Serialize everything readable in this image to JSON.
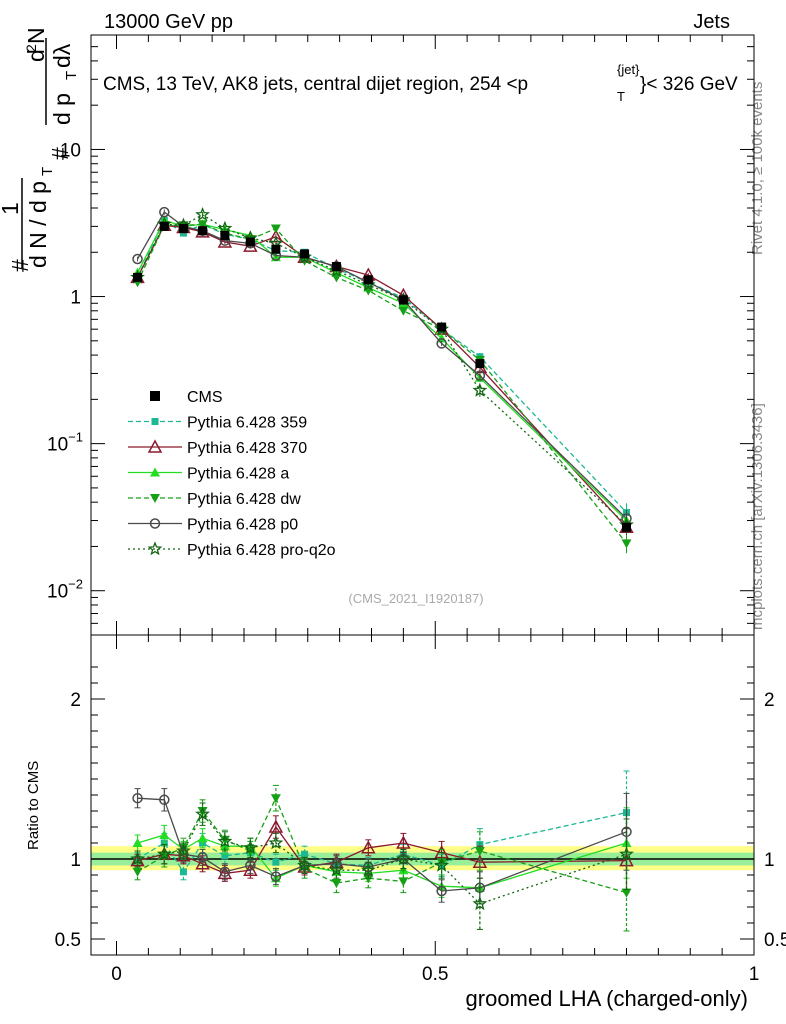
{
  "header": {
    "energy_label": "13000 GeV pp",
    "process_label": "Jets",
    "title": "CMS, 13 TeV, AK8 jets, central dijet region, 254 <p",
    "title_sup": "{jet}",
    "title_sub": "T",
    "title_tail": "}< 326 GeV"
  },
  "side": {
    "rivet_label": "Rivet 4.1.0, ≥ 100k events",
    "mcplots_label": "mcplots.cern.ch [arXiv:1306.3436]"
  },
  "ylabel": {
    "hash1": "#",
    "one": "1",
    "dN_dpT": "d N / d p",
    "T1": "T",
    "hash2": "#",
    "d2N": "d",
    "two": "2",
    "N": "N",
    "dpT": "d p",
    "T2": "T",
    "dlambda": "dλ"
  },
  "watermark": "(CMS_2021_I1920187)",
  "xlabel": "groomed LHA (charged-only)",
  "ratio_ylabel": "Ratio to CMS",
  "colors": {
    "cms": "#000000",
    "p359": "#1cb893",
    "p370": "#8b1a2e",
    "pa": "#22dd22",
    "pdw": "#16a016",
    "pp0": "#4a4a4a",
    "pq2o": "#116611",
    "band_yellow": "#ffff88",
    "band_green": "#99ee99"
  },
  "chart_data": {
    "type": "scatter",
    "x": [
      0.033,
      0.075,
      0.105,
      0.135,
      0.17,
      0.21,
      0.25,
      0.295,
      0.345,
      0.395,
      0.45,
      0.51,
      0.57,
      0.8
    ],
    "xlim": [
      -0.04,
      1.0
    ],
    "main": {
      "yscale": "log",
      "ylim": [
        0.005,
        60
      ],
      "yticks": [
        {
          "v": 0.01,
          "base": "10",
          "exp": "−2"
        },
        {
          "v": 0.1,
          "base": "10",
          "exp": "−1"
        },
        {
          "v": 1,
          "base": "1",
          "exp": ""
        },
        {
          "v": 10,
          "base": "10",
          "exp": ""
        }
      ]
    },
    "ratio": {
      "ylim": [
        0.4,
        2.4
      ],
      "yticks": [
        0.5,
        1,
        2
      ],
      "band_yellow": [
        0.93,
        1.08
      ],
      "band_green": [
        0.96,
        1.04
      ]
    },
    "xticks": [
      0,
      0.5,
      1
    ],
    "legend": [
      "CMS",
      "Pythia 6.428 359",
      "Pythia 6.428 370",
      "Pythia 6.428 a",
      "Pythia 6.428 dw",
      "Pythia 6.428 p0",
      "Pythia 6.428 pro-q2o"
    ],
    "series": [
      {
        "name": "CMS",
        "key": "cms",
        "marker": "square",
        "dash": "none",
        "values": [
          1.35,
          3.0,
          2.9,
          2.8,
          2.6,
          2.35,
          2.1,
          1.95,
          1.6,
          1.3,
          0.95,
          0.62,
          0.35,
          0.027
        ]
      },
      {
        "name": "Pythia 6.428 359",
        "key": "p359",
        "marker": "square-small",
        "dash": "5,3",
        "values": [
          1.35,
          3.3,
          2.7,
          3.1,
          2.65,
          2.45,
          2.05,
          2.0,
          1.55,
          1.25,
          0.98,
          0.6,
          0.39,
          0.034
        ],
        "ratio": [
          1.0,
          1.1,
          0.92,
          1.1,
          1.02,
          1.04,
          0.98,
          1.03,
          0.97,
          0.96,
          1.03,
          0.96,
          1.09,
          1.29
        ],
        "ratio_err": [
          0.04,
          0.06,
          0.05,
          0.06,
          0.05,
          0.05,
          0.05,
          0.05,
          0.05,
          0.05,
          0.06,
          0.07,
          0.1,
          0.26
        ]
      },
      {
        "name": "Pythia 6.428 370",
        "key": "p370",
        "marker": "triangle-open",
        "dash": "none",
        "values": [
          1.35,
          3.05,
          2.95,
          2.75,
          2.35,
          2.2,
          2.55,
          1.85,
          1.6,
          1.4,
          1.02,
          0.6,
          0.33,
          0.027
        ],
        "ratio": [
          0.99,
          1.03,
          1.02,
          0.97,
          0.91,
          0.93,
          1.2,
          0.95,
          0.98,
          1.07,
          1.1,
          1.04,
          0.98,
          0.99
        ],
        "ratio_err": [
          0.04,
          0.06,
          0.05,
          0.05,
          0.05,
          0.05,
          0.07,
          0.05,
          0.05,
          0.05,
          0.06,
          0.07,
          0.1,
          0.2
        ]
      },
      {
        "name": "Pythia 6.428 a",
        "key": "pa",
        "marker": "triangle",
        "dash": "none",
        "values": [
          1.45,
          3.3,
          3.0,
          3.1,
          2.85,
          2.6,
          1.85,
          1.85,
          1.45,
          1.15,
          0.9,
          0.52,
          0.28,
          0.03
        ],
        "ratio": [
          1.1,
          1.15,
          1.06,
          1.13,
          1.08,
          1.08,
          0.88,
          0.96,
          0.92,
          0.91,
          0.93,
          0.83,
          0.82,
          1.1
        ],
        "ratio_err": [
          0.05,
          0.06,
          0.05,
          0.06,
          0.05,
          0.05,
          0.05,
          0.05,
          0.05,
          0.05,
          0.06,
          0.07,
          0.1,
          0.22
        ]
      },
      {
        "name": "Pythia 6.428 dw",
        "key": "pdw",
        "marker": "triangle-down",
        "dash": "5,3",
        "values": [
          1.25,
          3.05,
          3.05,
          3.1,
          2.7,
          2.45,
          2.9,
          1.75,
          1.35,
          1.1,
          0.8,
          0.6,
          0.37,
          0.021
        ],
        "ratio": [
          0.92,
          1.02,
          1.07,
          1.3,
          1.12,
          1.05,
          1.38,
          0.94,
          0.85,
          0.88,
          0.86,
          0.98,
          1.05,
          0.79
        ],
        "ratio_err": [
          0.05,
          0.07,
          0.06,
          0.07,
          0.06,
          0.06,
          0.08,
          0.06,
          0.06,
          0.06,
          0.07,
          0.08,
          0.12,
          0.24
        ]
      },
      {
        "name": "Pythia 6.428 p0",
        "key": "pp0",
        "marker": "circle-open",
        "dash": "none",
        "values": [
          1.8,
          3.75,
          3.0,
          2.8,
          2.4,
          2.3,
          1.9,
          1.85,
          1.6,
          1.25,
          0.95,
          0.48,
          0.29,
          0.031
        ],
        "ratio": [
          1.38,
          1.37,
          1.03,
          1.01,
          0.92,
          0.96,
          0.89,
          0.96,
          0.97,
          0.95,
          1.0,
          0.8,
          0.82,
          1.17
        ],
        "ratio_err": [
          0.06,
          0.07,
          0.05,
          0.05,
          0.05,
          0.05,
          0.05,
          0.05,
          0.05,
          0.05,
          0.06,
          0.07,
          0.1,
          0.24
        ]
      },
      {
        "name": "Pythia 6.428 pro-q2o",
        "key": "pq2o",
        "marker": "star",
        "dash": "2,3",
        "values": [
          1.35,
          3.1,
          3.05,
          3.6,
          2.9,
          2.5,
          2.3,
          1.85,
          1.5,
          1.2,
          0.95,
          0.6,
          0.23,
          0.028
        ],
        "ratio": [
          1.0,
          1.03,
          1.05,
          1.28,
          1.11,
          1.07,
          1.1,
          0.96,
          0.93,
          0.93,
          1.0,
          0.96,
          0.72,
          1.03
        ],
        "ratio_err": [
          0.05,
          0.06,
          0.05,
          0.07,
          0.06,
          0.06,
          0.06,
          0.05,
          0.05,
          0.05,
          0.06,
          0.08,
          0.16,
          0.22
        ]
      }
    ]
  }
}
